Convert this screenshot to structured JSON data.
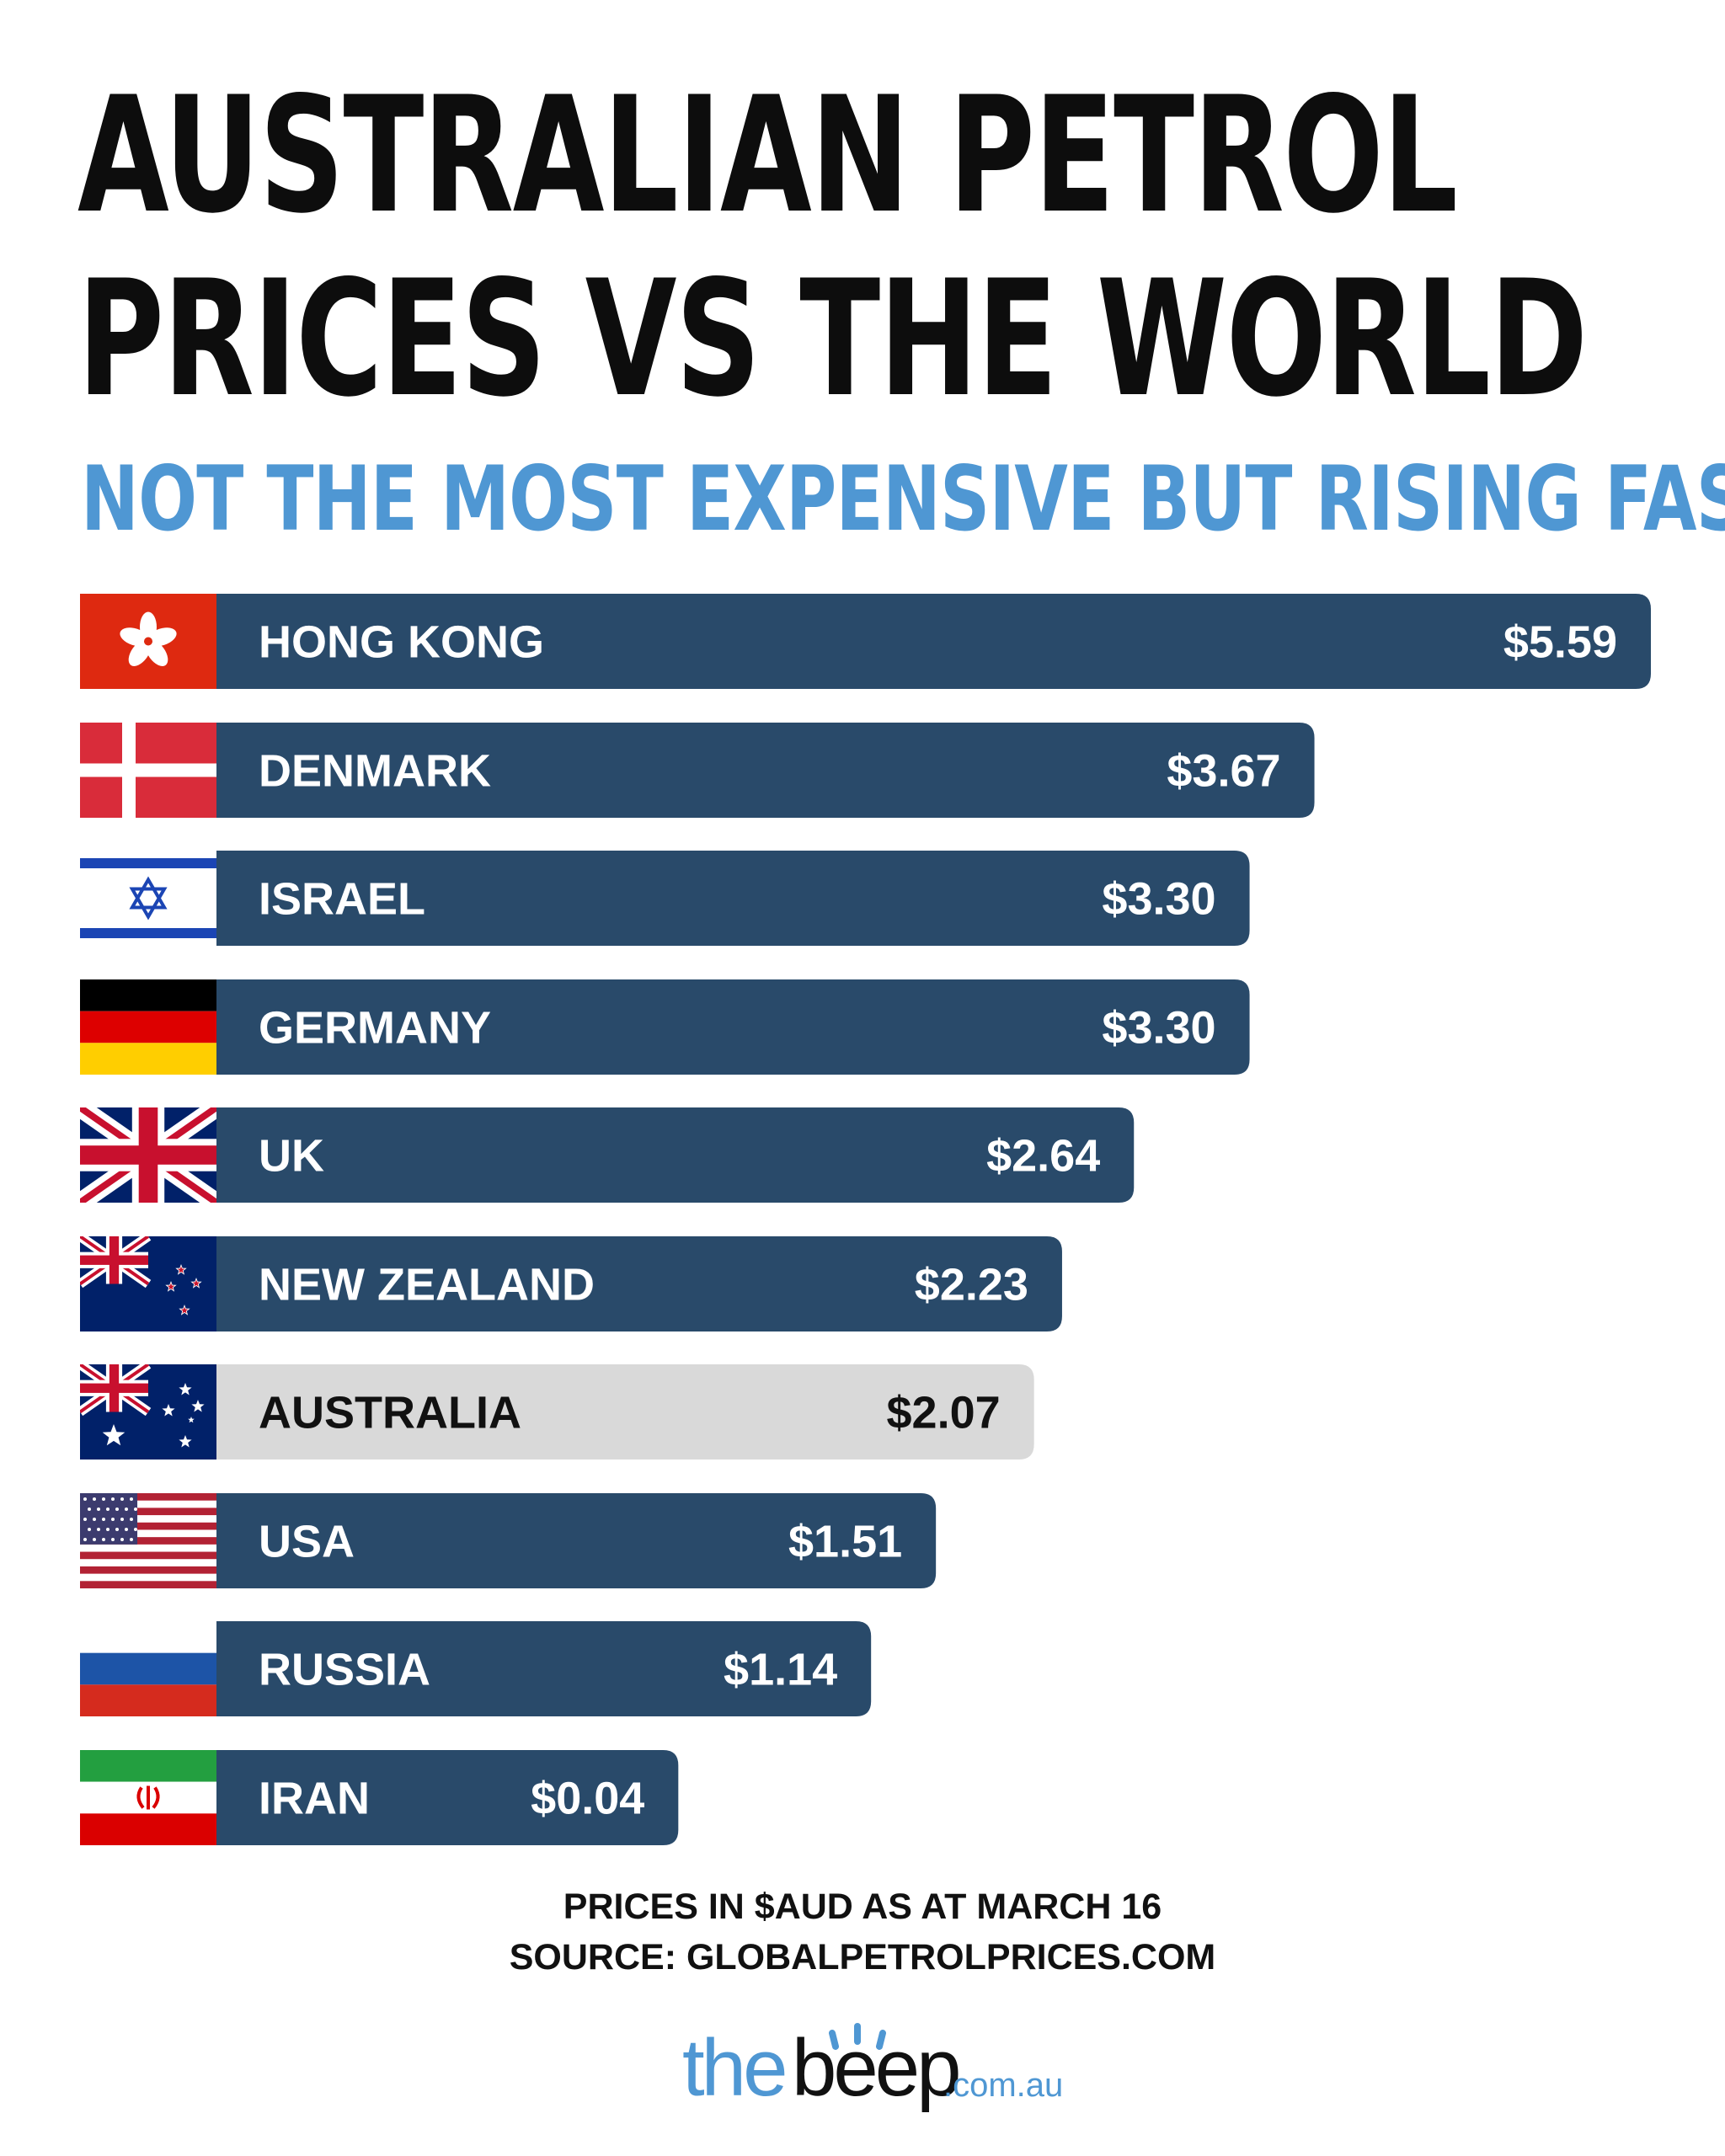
{
  "title_line1": "AUSTRALIAN PETROL",
  "title_line2": "PRICES VS THE WORLD",
  "subtitle": "NOT THE MOST EXPENSIVE BUT RISING FAST",
  "colors": {
    "bar": "#294a6a",
    "highlight_bar": "#d9d9d9",
    "bar_text": "#ffffff",
    "highlight_text": "#111111",
    "subtitle": "#4f97d3"
  },
  "chart_data": {
    "type": "bar",
    "orientation": "horizontal",
    "categories": [
      "HONG KONG",
      "DENMARK",
      "ISRAEL",
      "GERMANY",
      "UK",
      "NEW ZEALAND",
      "AUSTRALIA",
      "USA",
      "RUSSIA",
      "IRAN"
    ],
    "values": [
      5.59,
      3.67,
      3.3,
      3.3,
      2.64,
      2.23,
      2.07,
      1.51,
      1.14,
      0.04
    ],
    "value_labels": [
      "$5.59",
      "$3.67",
      "$3.30",
      "$3.30",
      "$2.64",
      "$2.23",
      "$2.07",
      "$1.51",
      "$1.14",
      "$0.04"
    ],
    "highlighted": "AUSTRALIA",
    "flags": [
      "hong-kong-flag",
      "denmark-flag",
      "israel-flag",
      "germany-flag",
      "uk-flag",
      "new-zealand-flag",
      "australia-flag",
      "usa-flag",
      "russia-flag",
      "iran-flag"
    ]
  },
  "footer": {
    "line1": "PRICES IN $AUD AS AT MARCH 16",
    "line2": "SOURCE: GLOBALPETROLPRICES.COM"
  },
  "logo": {
    "the": "the",
    "beep": "beep",
    "domain": ".com.au"
  }
}
